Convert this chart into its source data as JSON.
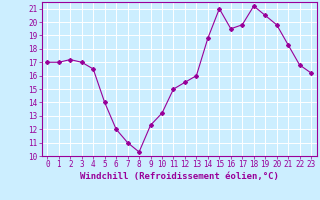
{
  "x": [
    0,
    1,
    2,
    3,
    4,
    5,
    6,
    7,
    8,
    9,
    10,
    11,
    12,
    13,
    14,
    15,
    16,
    17,
    18,
    19,
    20,
    21,
    22,
    23
  ],
  "y": [
    17,
    17,
    17.2,
    17,
    16.5,
    14,
    12,
    11,
    10.3,
    12.3,
    13.2,
    15,
    15.5,
    16,
    18.8,
    21,
    19.5,
    19.8,
    21.2,
    20.5,
    19.8,
    18.3,
    16.8,
    16.2
  ],
  "line_color": "#990099",
  "marker": "D",
  "marker_size": 2,
  "background_color": "#cceeff",
  "grid_color": "#aaddcc",
  "xlabel": "Windchill (Refroidissement éolien,°C)",
  "xlim": [
    -0.5,
    23.5
  ],
  "ylim": [
    10,
    21.5
  ],
  "yticks": [
    10,
    11,
    12,
    13,
    14,
    15,
    16,
    17,
    18,
    19,
    20,
    21
  ],
  "xticks": [
    0,
    1,
    2,
    3,
    4,
    5,
    6,
    7,
    8,
    9,
    10,
    11,
    12,
    13,
    14,
    15,
    16,
    17,
    18,
    19,
    20,
    21,
    22,
    23
  ],
  "tick_color": "#990099",
  "tick_fontsize": 5.5,
  "xlabel_fontsize": 6.5,
  "label_color": "#990099"
}
